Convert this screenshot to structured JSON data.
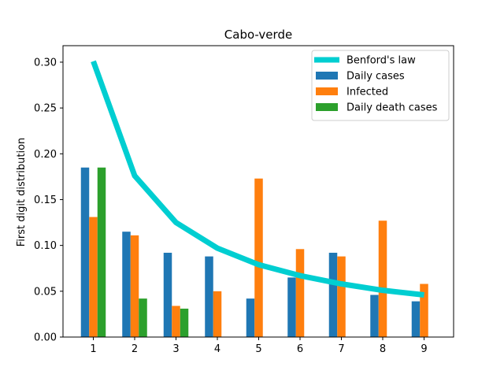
{
  "chart_data": {
    "type": "bar",
    "title": "Cabo-verde",
    "xlabel": "",
    "ylabel": "First digit distribution",
    "categories": [
      "1",
      "2",
      "3",
      "4",
      "5",
      "6",
      "7",
      "8",
      "9"
    ],
    "ylim": [
      0,
      0.3
    ],
    "yticks": [
      "0.00",
      "0.05",
      "0.10",
      "0.15",
      "0.20",
      "0.25",
      "0.30"
    ],
    "legend_position": "top-right",
    "grid": false,
    "series": [
      {
        "name": "Daily cases",
        "kind": "bar",
        "color": "#1f77b4",
        "values": [
          0.185,
          0.115,
          0.092,
          0.088,
          0.042,
          0.065,
          0.092,
          0.046,
          0.039
        ]
      },
      {
        "name": "Infected",
        "kind": "bar",
        "color": "#ff7f0e",
        "values": [
          0.131,
          0.111,
          0.034,
          0.05,
          0.173,
          0.096,
          0.088,
          0.127,
          0.058
        ]
      },
      {
        "name": "Daily death cases",
        "kind": "bar",
        "color": "#2ca02c",
        "values": [
          0.185,
          0.042,
          0.031,
          0,
          0,
          0,
          0,
          0,
          0
        ]
      }
    ],
    "line": {
      "name": "Benford's law",
      "kind": "line",
      "color": "#00ced1",
      "values": [
        0.301,
        0.176,
        0.125,
        0.097,
        0.079,
        0.067,
        0.058,
        0.051,
        0.046
      ]
    }
  }
}
